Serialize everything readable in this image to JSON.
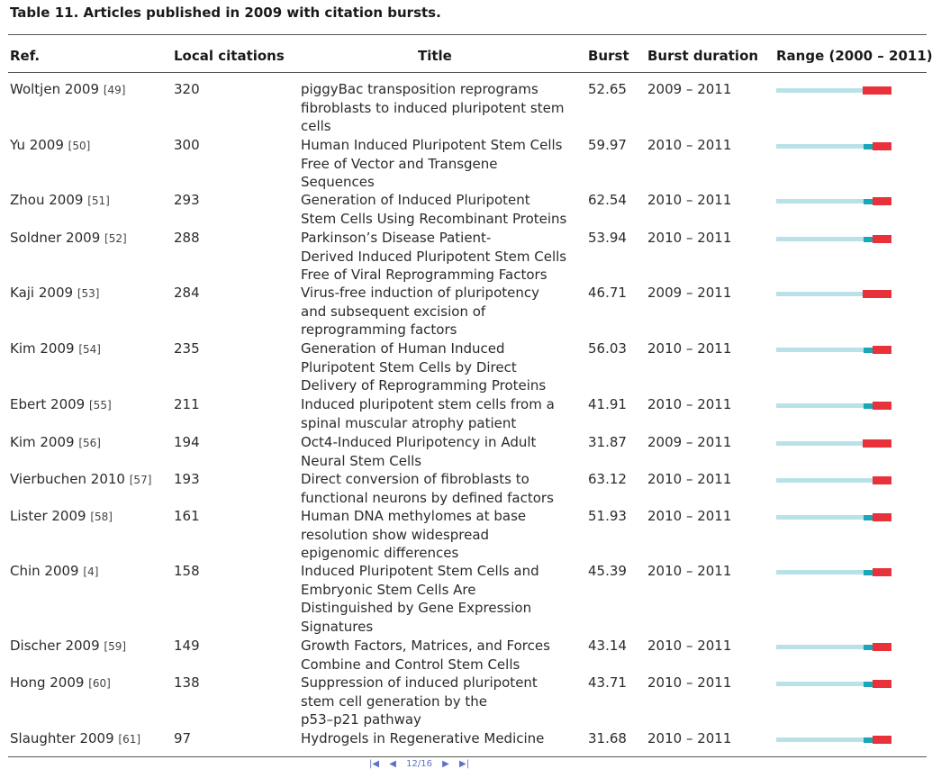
{
  "caption": "Table 11. Articles published in 2009 with citation bursts.",
  "headers": {
    "ref": "Ref.",
    "local": "Local citations",
    "title": "Title",
    "burst": "Burst",
    "duration": "Burst duration",
    "range": "Range (2000 – 2011)"
  },
  "rows": [
    {
      "author": "Woltjen 2009",
      "ref": "[49]",
      "local": "320",
      "title": [
        "piggyBac transposition reprograms",
        "fibroblasts to induced pluripotent stem",
        "cells"
      ],
      "burst": "52.65",
      "duration": "2009 – 2011"
    },
    {
      "author": "Yu 2009",
      "ref": "[50]",
      "local": "300",
      "title": [
        "Human Induced Pluripotent Stem Cells",
        "Free of Vector and Transgene",
        "Sequences"
      ],
      "burst": "59.97",
      "duration": "2010 – 2011"
    },
    {
      "author": "Zhou 2009",
      "ref": "[51]",
      "local": "293",
      "title": [
        "Generation of Induced Pluripotent",
        "Stem Cells Using Recombinant Proteins"
      ],
      "burst": "62.54",
      "duration": "2010 – 2011"
    },
    {
      "author": "Soldner 2009",
      "ref": "[52]",
      "local": "288",
      "title": [
        "Parkinson’s Disease Patient-",
        "Derived Induced Pluripotent Stem Cells",
        "Free of Viral Reprogramming Factors"
      ],
      "burst": "53.94",
      "duration": "2010 – 2011"
    },
    {
      "author": "Kaji 2009",
      "ref": "[53]",
      "local": "284",
      "title": [
        "Virus-free induction of pluripotency",
        "and subsequent excision of",
        "reprogramming factors"
      ],
      "burst": "46.71",
      "duration": "2009 – 2011"
    },
    {
      "author": "Kim 2009",
      "ref": "[54]",
      "local": "235",
      "title": [
        "Generation of Human Induced",
        "Pluripotent Stem Cells by Direct",
        "Delivery of Reprogramming Proteins"
      ],
      "burst": "56.03",
      "duration": "2010 – 2011"
    },
    {
      "author": "Ebert 2009",
      "ref": "[55]",
      "local": "211",
      "title": [
        "Induced pluripotent stem cells from a",
        "spinal muscular atrophy patient"
      ],
      "burst": "41.91",
      "duration": "2010 – 2011"
    },
    {
      "author": "Kim 2009",
      "ref": "[56]",
      "local": "194",
      "title": [
        "Oct4-Induced Pluripotency in Adult",
        "Neural Stem Cells"
      ],
      "burst": "31.87",
      "duration": "2009 – 2011"
    },
    {
      "author": "Vierbuchen 2010",
      "ref": "[57]",
      "local": "193",
      "title": [
        "Direct conversion of fibroblasts to",
        "functional neurons by defined factors"
      ],
      "burst": "63.12",
      "duration": "2010 – 2011"
    },
    {
      "author": "Lister 2009",
      "ref": "[58]",
      "local": "161",
      "title": [
        "Human DNA methylomes at base",
        "resolution show widespread",
        "epigenomic differences"
      ],
      "burst": "51.93",
      "duration": "2010 – 2011"
    },
    {
      "author": "Chin 2009",
      "ref": "[4]",
      "local": "158",
      "title": [
        "Induced Pluripotent Stem Cells and",
        "Embryonic Stem Cells Are",
        "Distinguished by Gene Expression",
        "Signatures"
      ],
      "burst": "45.39",
      "duration": "2010 – 2011"
    },
    {
      "author": "Discher 2009",
      "ref": "[59]",
      "local": "149",
      "title": [
        "Growth Factors, Matrices, and Forces",
        "Combine and Control Stem Cells"
      ],
      "burst": "43.14",
      "duration": "2010 – 2011"
    },
    {
      "author": "Hong 2009",
      "ref": "[60]",
      "local": "138",
      "title": [
        "Suppression of induced pluripotent",
        "stem cell generation by the",
        "p53–p21 pathway"
      ],
      "burst": "43.71",
      "duration": "2010 – 2011"
    },
    {
      "author": "Slaughter 2009",
      "ref": "[61]",
      "local": "97",
      "title": [
        "Hydrogels in Regenerative Medicine"
      ],
      "burst": "31.68",
      "duration": "2010 – 2011"
    }
  ],
  "range_years": {
    "start": 2000,
    "end": 2011
  },
  "colors": {
    "base": "#b9e2e8",
    "teal": "#1aa7b8",
    "red": "#e8313b"
  },
  "footer": {
    "page": "12/16"
  }
}
